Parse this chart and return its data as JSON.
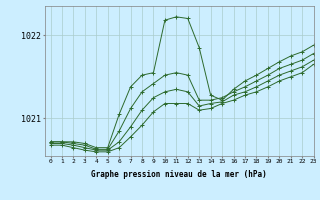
{
  "title": "Graphe pression niveau de la mer (hPa)",
  "background_color": "#cceeff",
  "grid_color": "#aacccc",
  "line_color": "#2d6a2d",
  "xlim": [
    -0.5,
    23
  ],
  "ylim": [
    1020.55,
    1022.35
  ],
  "yticks": [
    1021,
    1022
  ],
  "xticks": [
    0,
    1,
    2,
    3,
    4,
    5,
    6,
    7,
    8,
    9,
    10,
    11,
    12,
    13,
    14,
    15,
    16,
    17,
    18,
    19,
    20,
    21,
    22,
    23
  ],
  "series": [
    [
      1020.72,
      1020.72,
      1020.72,
      1020.7,
      1020.65,
      1020.65,
      1021.05,
      1021.38,
      1021.52,
      1021.55,
      1022.18,
      1022.22,
      1022.2,
      1021.85,
      1021.28,
      1021.22,
      1021.35,
      1021.45,
      1021.52,
      1021.6,
      1021.68,
      1021.75,
      1021.8,
      1021.88
    ],
    [
      1020.72,
      1020.72,
      1020.7,
      1020.68,
      1020.63,
      1020.63,
      1020.85,
      1021.12,
      1021.32,
      1021.42,
      1021.52,
      1021.55,
      1021.52,
      1021.22,
      1021.22,
      1021.25,
      1021.32,
      1021.38,
      1021.45,
      1021.52,
      1021.6,
      1021.65,
      1021.7,
      1021.78
    ],
    [
      1020.7,
      1020.7,
      1020.68,
      1020.65,
      1020.62,
      1020.62,
      1020.72,
      1020.9,
      1021.1,
      1021.25,
      1021.32,
      1021.35,
      1021.32,
      1021.15,
      1021.18,
      1021.2,
      1021.28,
      1021.32,
      1021.38,
      1021.45,
      1021.52,
      1021.57,
      1021.62,
      1021.7
    ],
    [
      1020.68,
      1020.68,
      1020.65,
      1020.62,
      1020.6,
      1020.6,
      1020.65,
      1020.78,
      1020.92,
      1021.08,
      1021.18,
      1021.18,
      1021.18,
      1021.1,
      1021.12,
      1021.18,
      1021.22,
      1021.28,
      1021.32,
      1021.38,
      1021.45,
      1021.5,
      1021.55,
      1021.65
    ]
  ]
}
